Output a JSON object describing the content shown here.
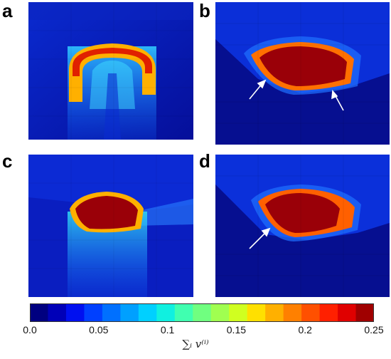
{
  "panels": [
    {
      "id": "a",
      "label": "a"
    },
    {
      "id": "b",
      "label": "b"
    },
    {
      "id": "c",
      "label": "c"
    },
    {
      "id": "d",
      "label": "d"
    }
  ],
  "colorbar": {
    "ticks": [
      "0.0",
      "0.05",
      "0.1",
      "0.15",
      "0.2",
      "0.25"
    ],
    "tick_values": [
      0.0,
      0.05,
      0.1,
      0.15,
      0.2,
      0.25
    ],
    "range": [
      0.0,
      0.25
    ],
    "label": "∑ᵢ v⁽ⁱ⁾",
    "colors": [
      "#000080",
      "#0000b8",
      "#0010f0",
      "#0040ff",
      "#0070ff",
      "#00a0ff",
      "#00d0ff",
      "#10f0e0",
      "#40ffb0",
      "#70ff80",
      "#a0ff50",
      "#d0ff20",
      "#ffe000",
      "#ffb000",
      "#ff8000",
      "#ff5000",
      "#ff2000",
      "#e00000",
      "#a00000"
    ]
  }
}
